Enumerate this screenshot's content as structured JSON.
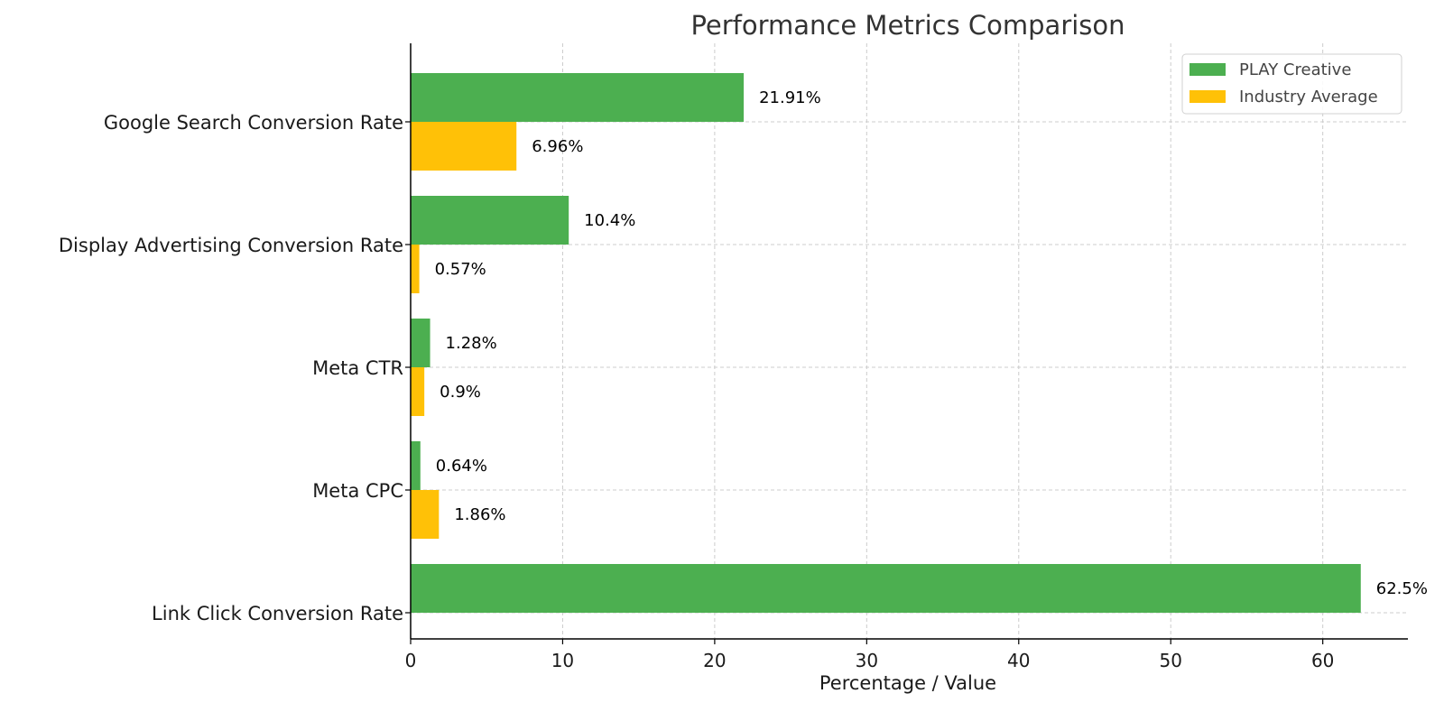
{
  "chart_data": {
    "type": "bar",
    "orientation": "horizontal",
    "title": "Performance Metrics Comparison",
    "xlabel": "Percentage / Value",
    "ylabel": "",
    "categories": [
      "Google Search Conversion Rate",
      "Display Advertising Conversion Rate",
      "Meta CTR",
      "Meta CPC",
      "Link Click Conversion Rate"
    ],
    "series": [
      {
        "name": "PLAY Creative",
        "color": "#4caf50",
        "values": [
          21.91,
          10.4,
          1.28,
          0.64,
          62.5
        ],
        "labels": [
          "21.91%",
          "10.4%",
          "1.28%",
          "0.64%",
          "62.5%"
        ]
      },
      {
        "name": "Industry Average",
        "color": "#ffc107",
        "values": [
          6.96,
          0.57,
          0.9,
          1.86,
          null
        ],
        "labels": [
          "6.96%",
          "0.57%",
          "0.9%",
          "1.86%",
          null
        ]
      }
    ],
    "xlim": [
      0,
      65.6
    ],
    "xticks": [
      0,
      10,
      20,
      30,
      40,
      50,
      60
    ],
    "xtick_labels": [
      "0",
      "10",
      "20",
      "30",
      "40",
      "50",
      "60"
    ],
    "grid": true,
    "legend_position": "top-right"
  }
}
